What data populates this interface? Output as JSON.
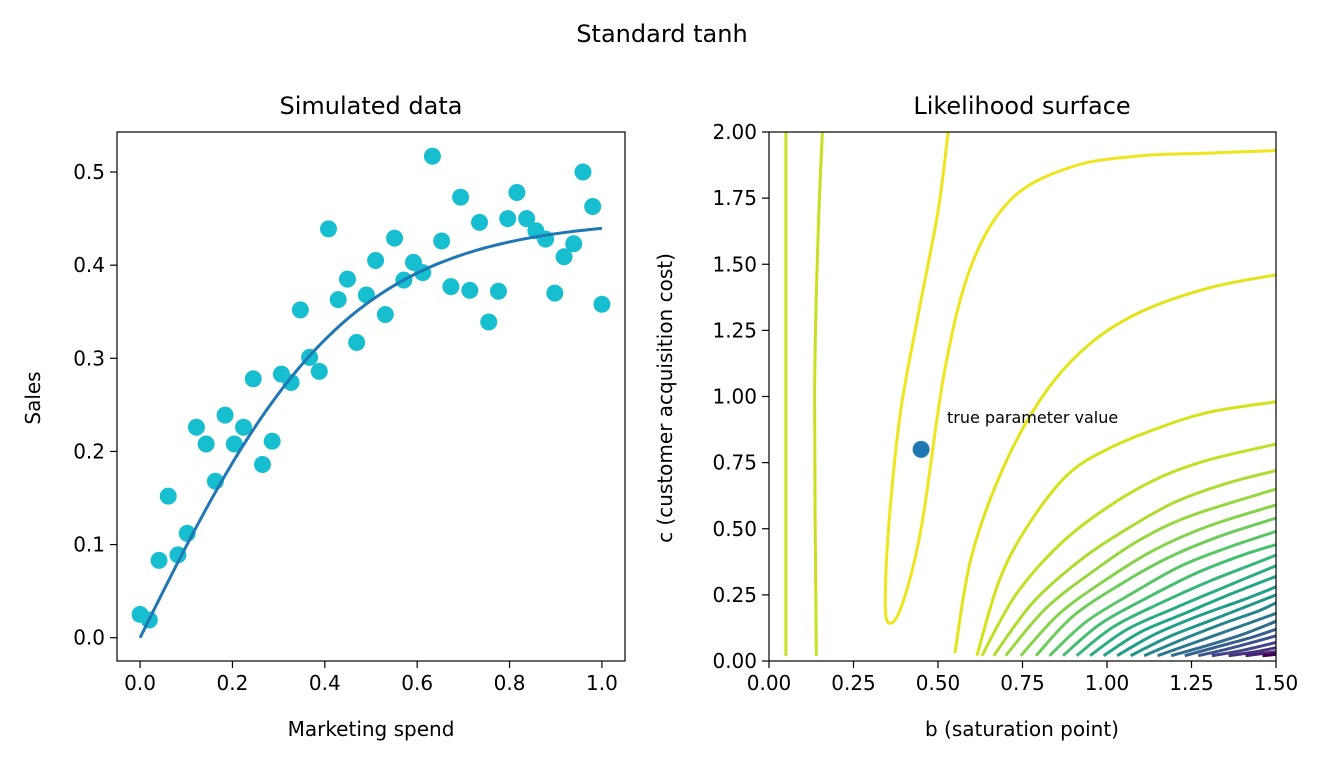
{
  "figure": {
    "suptitle": "Standard tanh"
  },
  "chart_data": [
    {
      "type": "scatter",
      "title": "Simulated data",
      "xlabel": "Marketing spend",
      "ylabel": "Sales",
      "xlim": [
        -0.05,
        1.05
      ],
      "ylim": [
        -0.025,
        0.543
      ],
      "xticks": [
        "0.0",
        "0.2",
        "0.4",
        "0.6",
        "0.8",
        "1.0"
      ],
      "yticks": [
        "0.0",
        "0.1",
        "0.2",
        "0.3",
        "0.4",
        "0.5"
      ],
      "grid": false,
      "scatter_color": "#17becf",
      "line_color": "#1f77b4",
      "series": [
        {
          "kind": "points",
          "x": [
            0.0,
            0.02,
            0.041,
            0.061,
            0.082,
            0.102,
            0.122,
            0.143,
            0.163,
            0.184,
            0.204,
            0.224,
            0.245,
            0.265,
            0.286,
            0.306,
            0.327,
            0.347,
            0.367,
            0.388,
            0.408,
            0.429,
            0.449,
            0.469,
            0.49,
            0.51,
            0.531,
            0.551,
            0.571,
            0.592,
            0.612,
            0.633,
            0.653,
            0.673,
            0.694,
            0.714,
            0.735,
            0.755,
            0.776,
            0.796,
            0.816,
            0.837,
            0.857,
            0.878,
            0.898,
            0.918,
            0.939,
            0.959,
            0.98,
            1.0
          ],
          "y": [
            0.025,
            0.019,
            0.083,
            0.152,
            0.089,
            0.112,
            0.226,
            0.208,
            0.168,
            0.239,
            0.208,
            0.226,
            0.278,
            0.186,
            0.211,
            0.283,
            0.274,
            0.352,
            0.301,
            0.286,
            0.439,
            0.363,
            0.385,
            0.317,
            0.368,
            0.405,
            0.347,
            0.429,
            0.384,
            0.403,
            0.392,
            0.517,
            0.426,
            0.377,
            0.473,
            0.373,
            0.446,
            0.339,
            0.372,
            0.45,
            0.478,
            0.45,
            0.437,
            0.428,
            0.37,
            0.409,
            0.423,
            0.5,
            0.463,
            0.358
          ]
        },
        {
          "kind": "line",
          "a": 0.45,
          "b": 0.45,
          "note": "y = a * tanh(x / b)"
        }
      ]
    },
    {
      "type": "contour",
      "title": "Likelihood surface",
      "xlabel": "b (saturation point)",
      "ylabel": "c (customer acquisition cost)",
      "xlim": [
        0.0,
        1.5
      ],
      "ylim": [
        0.0,
        2.0
      ],
      "xticks": [
        "0.00",
        "0.25",
        "0.50",
        "0.75",
        "1.00",
        "1.25",
        "1.50"
      ],
      "yticks": [
        "0.00",
        "0.25",
        "0.50",
        "0.75",
        "1.00",
        "1.25",
        "1.50",
        "1.75",
        "2.00"
      ],
      "true_point": {
        "x": 0.45,
        "y": 0.8,
        "color": "#1f77b4"
      },
      "annotation": "true parameter value",
      "colormap": "viridis",
      "contours": [
        {
          "color": "#c8e020",
          "points": [
            [
              0.05,
              0.02
            ],
            [
              0.05,
              2.0
            ]
          ]
        },
        {
          "color": "#c8e020",
          "points": [
            [
              0.14,
              0.02
            ],
            [
              0.135,
              1.0
            ],
            [
              0.145,
              1.6
            ],
            [
              0.158,
              2.0
            ]
          ]
        },
        {
          "color": "#efe51c",
          "points": [
            [
              0.53,
              2.0
            ],
            [
              0.5,
              1.7
            ],
            [
              0.44,
              1.3
            ],
            [
              0.39,
              0.95
            ],
            [
              0.36,
              0.6
            ],
            [
              0.345,
              0.3
            ],
            [
              0.35,
              0.15
            ],
            [
              0.39,
              0.2
            ],
            [
              0.45,
              0.5
            ],
            [
              0.52,
              1.1
            ],
            [
              0.6,
              1.5
            ],
            [
              0.72,
              1.75
            ],
            [
              0.9,
              1.87
            ],
            [
              1.1,
              1.91
            ],
            [
              1.3,
              1.92
            ],
            [
              1.5,
              1.93
            ]
          ]
        },
        {
          "color": "#e2e418",
          "points": [
            [
              0.55,
              0.03
            ],
            [
              0.6,
              0.4
            ],
            [
              0.7,
              0.75
            ],
            [
              0.82,
              1.02
            ],
            [
              0.95,
              1.2
            ],
            [
              1.1,
              1.32
            ],
            [
              1.3,
              1.41
            ],
            [
              1.5,
              1.46
            ]
          ]
        },
        {
          "color": "#d5e21a",
          "points": [
            [
              0.615,
              0.02
            ],
            [
              0.68,
              0.3
            ],
            [
              0.76,
              0.5
            ],
            [
              0.88,
              0.7
            ],
            [
              1.0,
              0.8
            ],
            [
              1.15,
              0.88
            ],
            [
              1.3,
              0.94
            ],
            [
              1.5,
              0.98
            ]
          ]
        },
        {
          "color": "#c2df23",
          "points": [
            [
              0.63,
              0.02
            ],
            [
              0.73,
              0.25
            ],
            [
              0.86,
              0.44
            ],
            [
              1.0,
              0.58
            ],
            [
              1.15,
              0.69
            ],
            [
              1.3,
              0.76
            ],
            [
              1.5,
              0.82
            ]
          ]
        },
        {
          "color": "#addc30",
          "points": [
            [
              0.665,
              0.02
            ],
            [
              0.78,
              0.22
            ],
            [
              0.92,
              0.38
            ],
            [
              1.06,
              0.5
            ],
            [
              1.2,
              0.6
            ],
            [
              1.35,
              0.67
            ],
            [
              1.5,
              0.72
            ]
          ]
        },
        {
          "color": "#98d83e",
          "points": [
            [
              0.7,
              0.02
            ],
            [
              0.82,
              0.2
            ],
            [
              0.96,
              0.34
            ],
            [
              1.1,
              0.46
            ],
            [
              1.25,
              0.55
            ],
            [
              1.5,
              0.65
            ]
          ]
        },
        {
          "color": "#84d44b",
          "points": [
            [
              0.745,
              0.02
            ],
            [
              0.86,
              0.18
            ],
            [
              1.0,
              0.31
            ],
            [
              1.14,
              0.42
            ],
            [
              1.3,
              0.51
            ],
            [
              1.5,
              0.59
            ]
          ]
        },
        {
          "color": "#6ccd5a",
          "points": [
            [
              0.79,
              0.02
            ],
            [
              0.9,
              0.17
            ],
            [
              1.04,
              0.29
            ],
            [
              1.18,
              0.39
            ],
            [
              1.33,
              0.47
            ],
            [
              1.5,
              0.54
            ]
          ]
        },
        {
          "color": "#58c765",
          "points": [
            [
              0.83,
              0.02
            ],
            [
              0.94,
              0.15
            ],
            [
              1.08,
              0.26
            ],
            [
              1.22,
              0.36
            ],
            [
              1.36,
              0.43
            ],
            [
              1.5,
              0.49
            ]
          ]
        },
        {
          "color": "#44bf70",
          "points": [
            [
              0.87,
              0.02
            ],
            [
              0.98,
              0.14
            ],
            [
              1.12,
              0.24
            ],
            [
              1.26,
              0.33
            ],
            [
              1.4,
              0.4
            ],
            [
              1.5,
              0.44
            ]
          ]
        },
        {
          "color": "#35b779",
          "points": [
            [
              0.91,
              0.02
            ],
            [
              1.02,
              0.13
            ],
            [
              1.16,
              0.22
            ],
            [
              1.3,
              0.3
            ],
            [
              1.42,
              0.36
            ],
            [
              1.5,
              0.4
            ]
          ]
        },
        {
          "color": "#28ae80",
          "points": [
            [
              0.95,
              0.02
            ],
            [
              1.06,
              0.12
            ],
            [
              1.2,
              0.2
            ],
            [
              1.33,
              0.27
            ],
            [
              1.5,
              0.36
            ]
          ]
        },
        {
          "color": "#21a685",
          "points": [
            [
              0.99,
              0.02
            ],
            [
              1.1,
              0.11
            ],
            [
              1.23,
              0.18
            ],
            [
              1.36,
              0.25
            ],
            [
              1.5,
              0.32
            ]
          ]
        },
        {
          "color": "#1f9e89",
          "points": [
            [
              1.03,
              0.02
            ],
            [
              1.14,
              0.1
            ],
            [
              1.27,
              0.17
            ],
            [
              1.4,
              0.23
            ],
            [
              1.5,
              0.28
            ]
          ]
        },
        {
          "color": "#22958b",
          "points": [
            [
              1.07,
              0.02
            ],
            [
              1.18,
              0.09
            ],
            [
              1.3,
              0.15
            ],
            [
              1.42,
              0.21
            ],
            [
              1.5,
              0.25
            ]
          ]
        },
        {
          "color": "#25858e",
          "points": [
            [
              1.11,
              0.02
            ],
            [
              1.22,
              0.08
            ],
            [
              1.34,
              0.14
            ],
            [
              1.45,
              0.19
            ],
            [
              1.5,
              0.22
            ]
          ]
        },
        {
          "color": "#2a788e",
          "points": [
            [
              1.15,
              0.02
            ],
            [
              1.26,
              0.07
            ],
            [
              1.37,
              0.12
            ],
            [
              1.5,
              0.18
            ]
          ]
        },
        {
          "color": "#2f6c8e",
          "points": [
            [
              1.19,
              0.02
            ],
            [
              1.3,
              0.06
            ],
            [
              1.4,
              0.1
            ],
            [
              1.5,
              0.15
            ]
          ]
        },
        {
          "color": "#355f8d",
          "points": [
            [
              1.23,
              0.02
            ],
            [
              1.33,
              0.055
            ],
            [
              1.43,
              0.09
            ],
            [
              1.5,
              0.12
            ]
          ]
        },
        {
          "color": "#3b528b",
          "points": [
            [
              1.27,
              0.02
            ],
            [
              1.37,
              0.05
            ],
            [
              1.5,
              0.095
            ]
          ]
        },
        {
          "color": "#414487",
          "points": [
            [
              1.31,
              0.02
            ],
            [
              1.4,
              0.04
            ],
            [
              1.5,
              0.07
            ]
          ]
        },
        {
          "color": "#46337f",
          "points": [
            [
              1.36,
              0.02
            ],
            [
              1.44,
              0.035
            ],
            [
              1.5,
              0.05
            ]
          ]
        },
        {
          "color": "#482475",
          "points": [
            [
              1.41,
              0.02
            ],
            [
              1.5,
              0.035
            ]
          ]
        },
        {
          "color": "#440154",
          "points": [
            [
              1.46,
              0.02
            ],
            [
              1.5,
              0.025
            ]
          ]
        }
      ]
    }
  ]
}
